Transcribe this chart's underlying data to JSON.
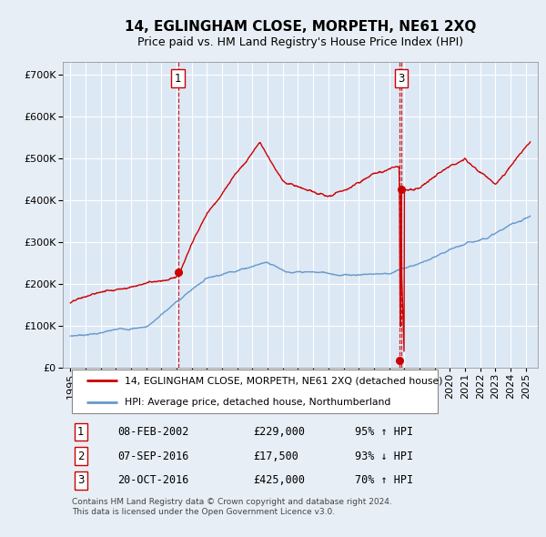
{
  "title": "14, EGLINGHAM CLOSE, MORPETH, NE61 2XQ",
  "subtitle": "Price paid vs. HM Land Registry's House Price Index (HPI)",
  "ytick_values": [
    0,
    100000,
    200000,
    300000,
    400000,
    500000,
    600000,
    700000
  ],
  "ylim": [
    0,
    730000
  ],
  "xlim_start": 1994.5,
  "xlim_end": 2025.8,
  "background_color": "#e8eef5",
  "plot_bg_color": "#dde8f5",
  "grid_color": "#ffffff",
  "hpi_line_color": "#6699cc",
  "price_line_color": "#cc0000",
  "dashed_line_color": "#cc0000",
  "transactions": [
    {
      "label": "1",
      "date_num": 2002.1,
      "price": 229000
    },
    {
      "label": "2",
      "date_num": 2016.67,
      "price": 17500
    },
    {
      "label": "3",
      "date_num": 2016.8,
      "price": 425000
    }
  ],
  "legend_entries": [
    {
      "label": "14, EGLINGHAM CLOSE, MORPETH, NE61 2XQ (detached house)",
      "color": "#cc0000"
    },
    {
      "label": "HPI: Average price, detached house, Northumberland",
      "color": "#6699cc"
    }
  ],
  "table_rows": [
    {
      "num": "1",
      "date": "08-FEB-2002",
      "price": "£229,000",
      "hpi": "95% ↑ HPI"
    },
    {
      "num": "2",
      "date": "07-SEP-2016",
      "price": "£17,500",
      "hpi": "93% ↓ HPI"
    },
    {
      "num": "3",
      "date": "20-OCT-2016",
      "price": "£425,000",
      "hpi": "70% ↑ HPI"
    }
  ],
  "footer": "Contains HM Land Registry data © Crown copyright and database right 2024.\nThis data is licensed under the Open Government Licence v3.0.",
  "title_fontsize": 11,
  "subtitle_fontsize": 9,
  "tick_fontsize": 8,
  "table_fontsize": 8.5
}
